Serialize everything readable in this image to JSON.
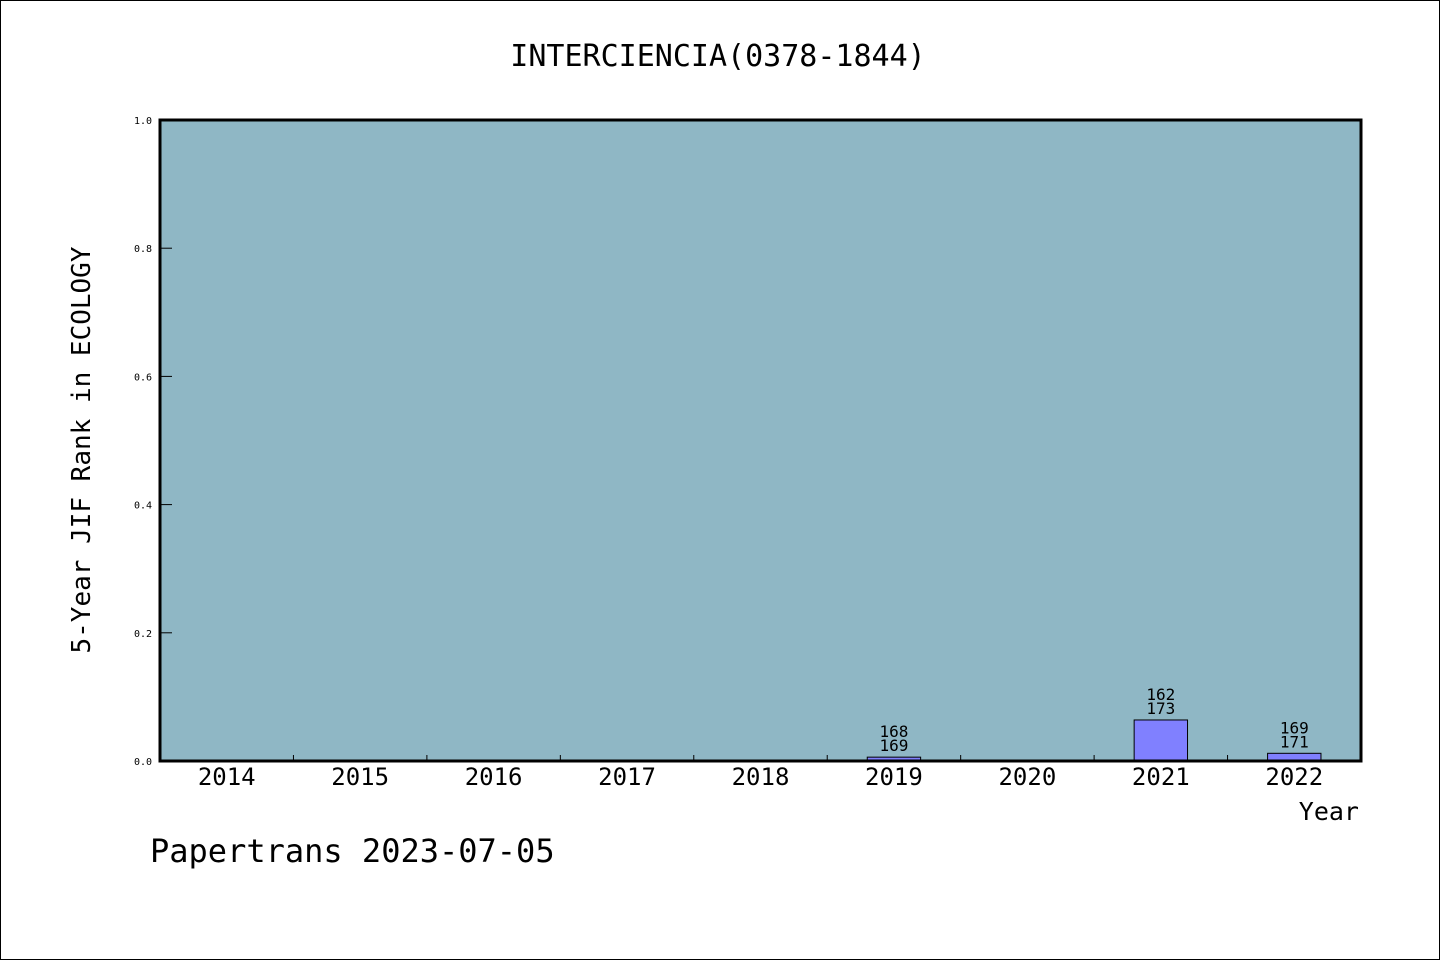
{
  "chart_data": {
    "type": "bar",
    "title": "INTERCIENCIA(0378-1844)",
    "xlabel": "Year",
    "ylabel": "5-Year JIF Rank in ECOLOGY",
    "ylim": [
      0,
      1.0
    ],
    "yticks": [
      "0.0",
      "0.2",
      "0.4",
      "0.6",
      "0.8",
      "1.0"
    ],
    "categories": [
      "2014",
      "2015",
      "2016",
      "2017",
      "2018",
      "2019",
      "2020",
      "2021",
      "2022"
    ],
    "values": [
      null,
      null,
      null,
      null,
      null,
      0.006,
      null,
      0.064,
      0.012
    ],
    "bar_labels": [
      null,
      null,
      null,
      null,
      null,
      {
        "rank": "168",
        "total": "169"
      },
      null,
      {
        "rank": "162",
        "total": "173"
      },
      {
        "rank": "169",
        "total": "171"
      }
    ],
    "grid": false,
    "colors": {
      "plot_background": "#8fb7c5",
      "bar_fill": "#8080ff",
      "axis": "#000000"
    }
  },
  "footer": {
    "text": "Papertrans 2023-07-05"
  }
}
